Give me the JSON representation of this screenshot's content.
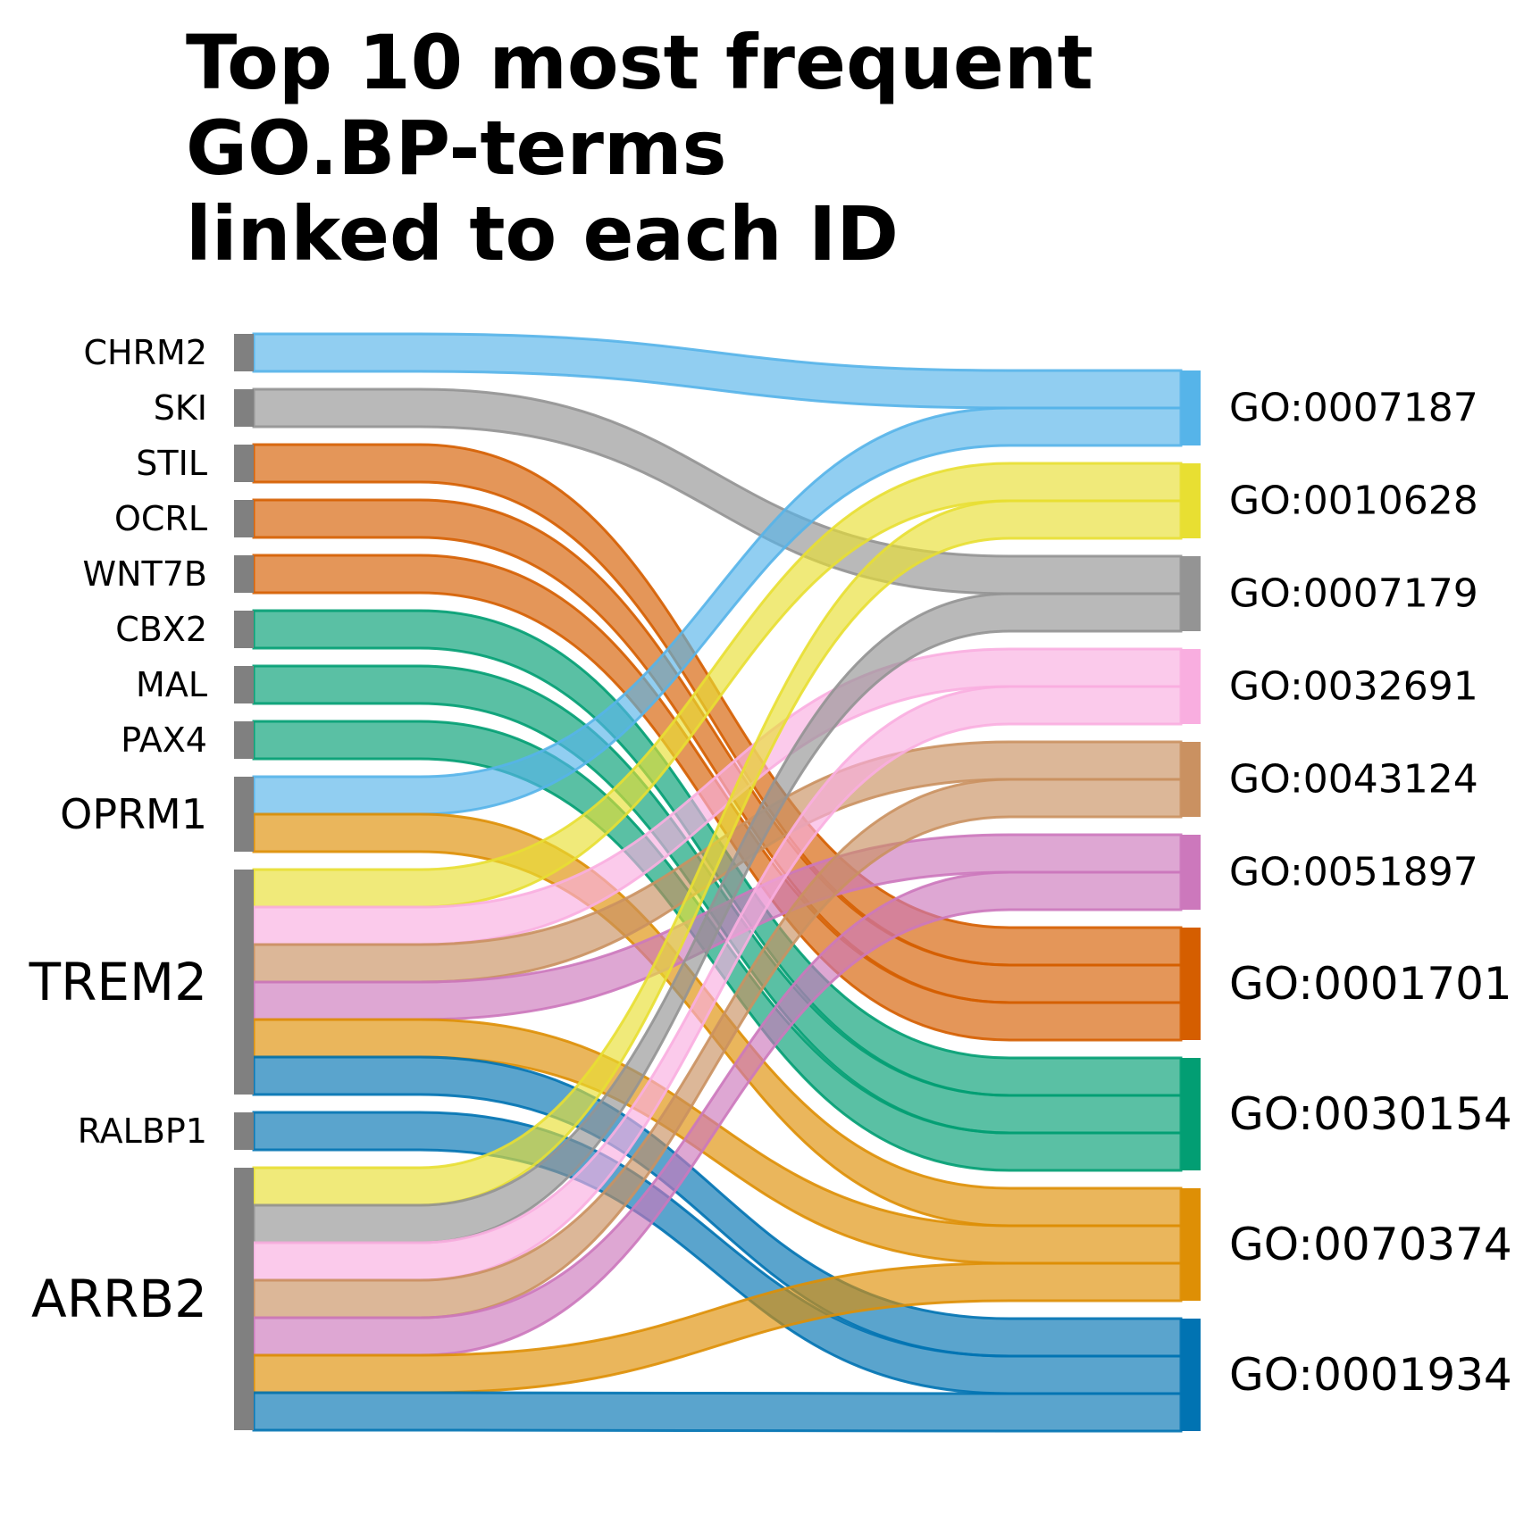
{
  "title": "Top 10 most frequent\nGO.BP-terms\nlinked to each ID",
  "chart_data": {
    "type": "sankey",
    "sources": [
      "CHRM2",
      "SKI",
      "STIL",
      "OCRL",
      "WNT7B",
      "CBX2",
      "MAL",
      "PAX4",
      "OPRM1",
      "TREM2",
      "RALBP1",
      "ARRB2"
    ],
    "targets": [
      {
        "id": "GO:0007187",
        "color": "#56b4e9"
      },
      {
        "id": "GO:0010628",
        "color": "#e8df32"
      },
      {
        "id": "GO:0007179",
        "color": "#949494"
      },
      {
        "id": "GO:0032691",
        "color": "#f9aee0"
      },
      {
        "id": "GO:0043124",
        "color": "#ca9161"
      },
      {
        "id": "GO:0051897",
        "color": "#cc78bc"
      },
      {
        "id": "GO:0001701",
        "color": "#d55e00"
      },
      {
        "id": "GO:0030154",
        "color": "#029e73"
      },
      {
        "id": "GO:0070374",
        "color": "#de8f05"
      },
      {
        "id": "GO:0001934",
        "color": "#0173b2"
      }
    ],
    "links": [
      {
        "source": "CHRM2",
        "target": "GO:0007187",
        "value": 1
      },
      {
        "source": "SKI",
        "target": "GO:0007179",
        "value": 1
      },
      {
        "source": "STIL",
        "target": "GO:0001701",
        "value": 1
      },
      {
        "source": "OCRL",
        "target": "GO:0001701",
        "value": 1
      },
      {
        "source": "WNT7B",
        "target": "GO:0001701",
        "value": 1
      },
      {
        "source": "CBX2",
        "target": "GO:0030154",
        "value": 1
      },
      {
        "source": "MAL",
        "target": "GO:0030154",
        "value": 1
      },
      {
        "source": "PAX4",
        "target": "GO:0030154",
        "value": 1
      },
      {
        "source": "OPRM1",
        "target": "GO:0007187",
        "value": 1
      },
      {
        "source": "OPRM1",
        "target": "GO:0070374",
        "value": 1
      },
      {
        "source": "TREM2",
        "target": "GO:0010628",
        "value": 1
      },
      {
        "source": "TREM2",
        "target": "GO:0032691",
        "value": 1
      },
      {
        "source": "TREM2",
        "target": "GO:0043124",
        "value": 1
      },
      {
        "source": "TREM2",
        "target": "GO:0051897",
        "value": 1
      },
      {
        "source": "TREM2",
        "target": "GO:0070374",
        "value": 1
      },
      {
        "source": "TREM2",
        "target": "GO:0001934",
        "value": 1
      },
      {
        "source": "RALBP1",
        "target": "GO:0001934",
        "value": 1
      },
      {
        "source": "ARRB2",
        "target": "GO:0010628",
        "value": 1
      },
      {
        "source": "ARRB2",
        "target": "GO:0007179",
        "value": 1
      },
      {
        "source": "ARRB2",
        "target": "GO:0032691",
        "value": 1
      },
      {
        "source": "ARRB2",
        "target": "GO:0043124",
        "value": 1
      },
      {
        "source": "ARRB2",
        "target": "GO:0051897",
        "value": 1
      },
      {
        "source": "ARRB2",
        "target": "GO:0070374",
        "value": 1
      },
      {
        "source": "ARRB2",
        "target": "GO:0001934",
        "value": 1
      }
    ]
  }
}
